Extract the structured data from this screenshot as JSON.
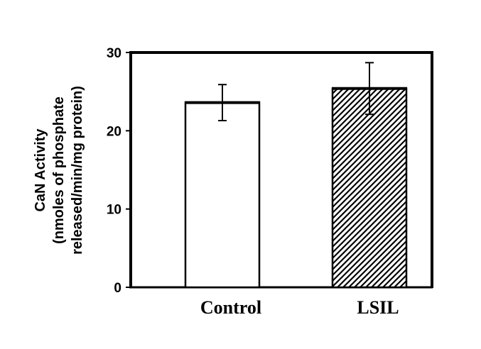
{
  "chart_data": {
    "type": "bar",
    "categories": [
      "Control",
      "LSIL"
    ],
    "values": [
      23.6,
      25.4
    ],
    "errors": [
      2.3,
      3.3
    ],
    "ylabel_lines": [
      "CaN Activity",
      "(nmoles of phosphate",
      "released/min/mg protein)"
    ],
    "ylim": [
      0,
      30
    ],
    "yticks": [
      0,
      10,
      20,
      30
    ],
    "grid": false,
    "bar_styles": [
      "solid-white",
      "diagonal-hatch"
    ],
    "colors": {
      "bar_fill": "#ffffff",
      "stroke": "#000000"
    }
  }
}
